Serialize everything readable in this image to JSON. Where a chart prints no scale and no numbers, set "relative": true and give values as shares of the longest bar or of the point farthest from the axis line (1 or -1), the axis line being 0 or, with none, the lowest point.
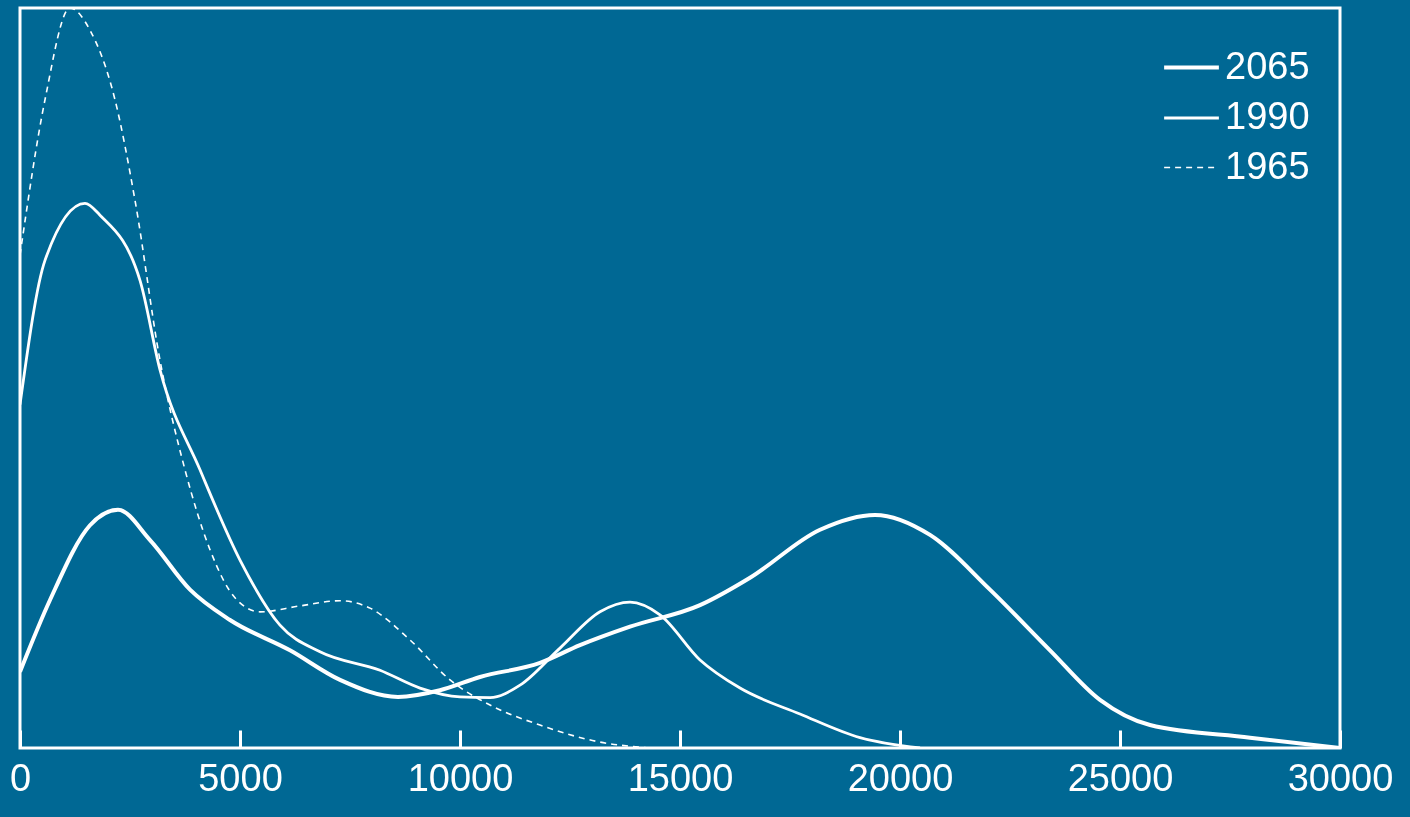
{
  "chart_data": {
    "type": "line",
    "relative": true,
    "xlim": [
      0,
      30000
    ],
    "xticks": [
      0,
      5000,
      10000,
      15000,
      20000,
      25000,
      30000
    ],
    "legend": "top right",
    "grid": false,
    "marker": "none",
    "series": [
      {
        "name": "2065",
        "color": "#ffffff",
        "line_style": "solid",
        "x": [
          0,
          682,
          1591,
          2227,
          2955,
          3864,
          4773,
          6136,
          7273,
          8591,
          9545,
          10455,
          11818,
          12727,
          13864,
          15455,
          16591,
          18182,
          19432,
          20682,
          22045,
          23409,
          24545,
          25682,
          27955,
          30000
        ],
        "values": [
          0.103,
          0.2,
          0.301,
          0.322,
          0.281,
          0.214,
          0.173,
          0.132,
          0.092,
          0.069,
          0.078,
          0.096,
          0.115,
          0.139,
          0.164,
          0.193,
          0.23,
          0.295,
          0.315,
          0.288,
          0.214,
          0.132,
          0.065,
          0.031,
          0.014,
          0
        ]
      },
      {
        "name": "1990",
        "color": "#ffffff",
        "line_style": "solid",
        "x": [
          0,
          568,
          1477,
          1818,
          2727,
          3182,
          4091,
          5000,
          5909,
          6818,
          8182,
          9091,
          10000,
          10682,
          11364,
          12273,
          13182,
          13864,
          14545,
          15455,
          16364,
          17727,
          19091,
          20455
        ],
        "values": [
          0.464,
          0.659,
          0.736,
          0.72,
          0.632,
          0.511,
          0.376,
          0.254,
          0.166,
          0.13,
          0.105,
          0.081,
          0.069,
          0.068,
          0.085,
          0.135,
          0.184,
          0.197,
          0.18,
          0.119,
          0.081,
          0.046,
          0.014,
          0
        ]
      },
      {
        "name": "1965",
        "color": "#ffffff",
        "line_style": "dashed",
        "x": [
          0,
          568,
          1136,
          1591,
          2159,
          2614,
          3182,
          3750,
          4318,
          4886,
          5455,
          6364,
          7273,
          7955,
          8864,
          9773,
          10682,
          11818,
          13182,
          14318
        ],
        "values": [
          0.666,
          0.876,
          1,
          0.97,
          0.876,
          0.74,
          0.524,
          0.376,
          0.268,
          0.203,
          0.184,
          0.192,
          0.199,
          0.189,
          0.146,
          0.092,
          0.058,
          0.031,
          0.008,
          0
        ]
      }
    ]
  }
}
